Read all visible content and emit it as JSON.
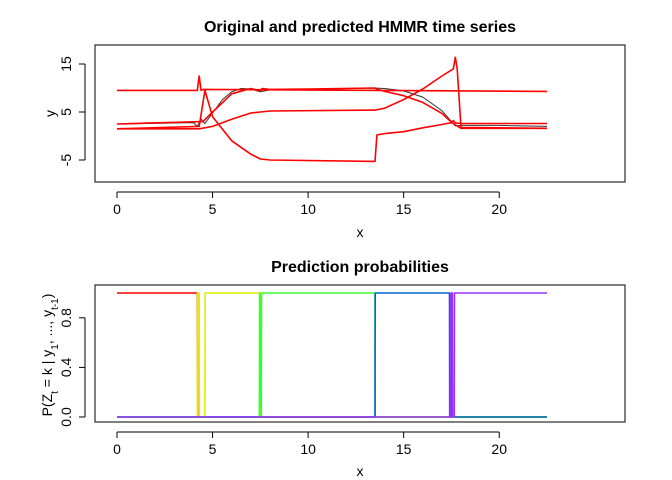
{
  "chart_data": [
    {
      "type": "line",
      "title": "Original and predicted HMMR time series",
      "xlabel": "x",
      "ylabel": "y",
      "xlim": [
        0,
        22.5
      ],
      "ylim": [
        -10,
        18
      ],
      "xticks": [
        0,
        5,
        10,
        15,
        20
      ],
      "yticks": [
        -5,
        5,
        15
      ],
      "grid": false,
      "series": [
        {
          "color": "#333333",
          "x": [
            0,
            4.0,
            4.2,
            4.4,
            4.6,
            5.0,
            5.5,
            6.0,
            6.5,
            7.0,
            7.5,
            8.0,
            10.0,
            13.4,
            14.0,
            15.0,
            16.0,
            17.0,
            17.5,
            17.7,
            18.0,
            20.0,
            22.5
          ],
          "y": [
            2.5,
            2.8,
            2.0,
            3.5,
            2.6,
            4.8,
            7.5,
            9.2,
            9.9,
            9.8,
            9.2,
            9.6,
            9.7,
            10.0,
            9.9,
            9.4,
            8.1,
            5.3,
            3.0,
            2.1,
            2.2,
            2.2,
            2.0
          ]
        },
        {
          "color": "#ff0000",
          "x": [
            0,
            4.2,
            4.3,
            4.4,
            4.5,
            22.5
          ],
          "y": [
            9.5,
            9.5,
            12.5,
            9.5,
            9.7,
            9.3
          ]
        },
        {
          "color": "#ff0000",
          "x": [
            0,
            4.5,
            5.0,
            6.0,
            7.0,
            7.5,
            7.6,
            8.0,
            10.0,
            13.5,
            13.6,
            14.0,
            15.0,
            16.0,
            17.0,
            17.5,
            17.6,
            17.7,
            18.0,
            22.5
          ],
          "y": [
            2.5,
            3.0,
            5.0,
            8.8,
            9.9,
            9.4,
            9.9,
            9.7,
            9.8,
            10.0,
            9.8,
            9.3,
            8.4,
            7.0,
            4.7,
            2.9,
            3.2,
            2.7,
            2.6,
            2.6
          ]
        },
        {
          "color": "#ff0000",
          "x": [
            0,
            4.3,
            5.0,
            6.0,
            7.0,
            7.5,
            8.0,
            13.5,
            14.0,
            15.0,
            16.0,
            17.0,
            17.6,
            17.7,
            17.8,
            18.0,
            22.5
          ],
          "y": [
            1.5,
            1.5,
            2.0,
            3.5,
            4.8,
            5.0,
            5.2,
            5.4,
            5.8,
            7.6,
            9.8,
            12.5,
            14.0,
            16.4,
            14.0,
            1.8,
            1.6
          ]
        },
        {
          "color": "#ff0000",
          "x": [
            0,
            4.3,
            4.6,
            5.0,
            6.0,
            7.0,
            7.5,
            8.0,
            13.5,
            13.6,
            14.0,
            15.0,
            16.0,
            17.0,
            17.5,
            18.0,
            22.5
          ],
          "y": [
            1.5,
            2.0,
            9.5,
            4.0,
            -1.0,
            -3.8,
            -4.8,
            -5.0,
            -5.3,
            0.2,
            0.5,
            0.9,
            1.7,
            2.4,
            2.8,
            1.6,
            1.6
          ]
        }
      ]
    },
    {
      "type": "line",
      "title": "Prediction probabilities",
      "xlabel": "x",
      "ylabel": "P(Z_t = k | y_1, ..., y_{t-1})",
      "xlim": [
        0,
        22.5
      ],
      "ylim": [
        0,
        1
      ],
      "xticks": [
        0,
        5,
        10,
        15,
        20
      ],
      "yticks": [
        0.0,
        0.4,
        0.8
      ],
      "grid": false,
      "series": [
        {
          "color": "#ff0000",
          "x": [
            0,
            4.2,
            4.21,
            22.5
          ],
          "y": [
            1,
            1,
            0,
            0
          ]
        },
        {
          "color": "#ddee00",
          "x": [
            0,
            4.2,
            4.21,
            4.3,
            4.31,
            4.6,
            4.61,
            7.5,
            7.51,
            22.5
          ],
          "y": [
            0,
            0,
            1,
            1,
            0,
            0,
            1,
            1,
            0,
            0
          ]
        },
        {
          "color": "#33ff33",
          "x": [
            0,
            7.45,
            7.46,
            7.55,
            7.56,
            13.5,
            13.51,
            22.5
          ],
          "y": [
            0,
            0,
            1,
            0,
            1,
            1,
            0,
            0
          ]
        },
        {
          "color": "#0066cc",
          "x": [
            0,
            13.5,
            13.51,
            17.4,
            17.41,
            17.5,
            17.51,
            22.5
          ],
          "y": [
            0,
            0,
            1,
            1,
            0,
            1,
            0,
            0
          ]
        },
        {
          "color": "#9933ff",
          "x": [
            0,
            17.45,
            17.46,
            17.55,
            17.56,
            17.65,
            17.66,
            22.5
          ],
          "y": [
            0,
            0,
            1,
            1,
            0,
            0,
            1,
            1
          ]
        }
      ]
    }
  ]
}
